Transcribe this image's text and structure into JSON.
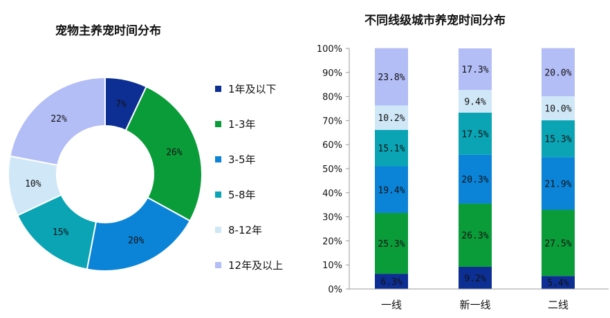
{
  "chart_data": [
    {
      "type": "pie",
      "variant": "donut",
      "title": "宠物主养宠时间分布",
      "labels": [
        "1年及以下",
        "1-3年",
        "3-5年",
        "5-8年",
        "8-12年",
        "12年及以上"
      ],
      "values": [
        7,
        26,
        20,
        15,
        10,
        22
      ],
      "value_labels": [
        "7%",
        "26%",
        "20%",
        "15%",
        "10%",
        "22%"
      ],
      "colors": [
        "#0d2f93",
        "#0b9c3a",
        "#0b84d8",
        "#0aa4b4",
        "#cfe7f6",
        "#b3bdf6"
      ],
      "legend_position": "right"
    },
    {
      "type": "bar",
      "variant": "stacked-100",
      "title": "不同线级城市养宠时间分布",
      "categories": [
        "一线",
        "新一线",
        "二线"
      ],
      "series": [
        {
          "values": [
            6.3,
            9.2,
            5.4
          ],
          "labels": [
            "6.3%",
            "9.2%",
            "5.4%"
          ],
          "color": "#0d2f93"
        },
        {
          "values": [
            25.3,
            26.3,
            27.5
          ],
          "labels": [
            "25.3%",
            "26.3%",
            "27.5%"
          ],
          "color": "#0b9c3a"
        },
        {
          "values": [
            19.4,
            20.3,
            21.9
          ],
          "labels": [
            "19.4%",
            "20.3%",
            "21.9%"
          ],
          "color": "#0b84d8"
        },
        {
          "values": [
            15.1,
            17.5,
            15.3
          ],
          "labels": [
            "15.1%",
            "17.5%",
            "15.3%"
          ],
          "color": "#0aa4b4"
        },
        {
          "values": [
            10.2,
            9.4,
            10.0
          ],
          "labels": [
            "10.2%",
            "9.4%",
            "10.0%"
          ],
          "color": "#cfe7f6"
        },
        {
          "values": [
            23.8,
            17.3,
            20.0
          ],
          "labels": [
            "23.8%",
            "17.3%",
            "20.0%"
          ],
          "color": "#b3bdf6"
        }
      ],
      "ylim": [
        0,
        100
      ],
      "yticks": [
        "0%",
        "10%",
        "20%",
        "30%",
        "40%",
        "50%",
        "60%",
        "70%",
        "80%",
        "90%",
        "100%"
      ],
      "grid": false,
      "legend": "none"
    }
  ]
}
